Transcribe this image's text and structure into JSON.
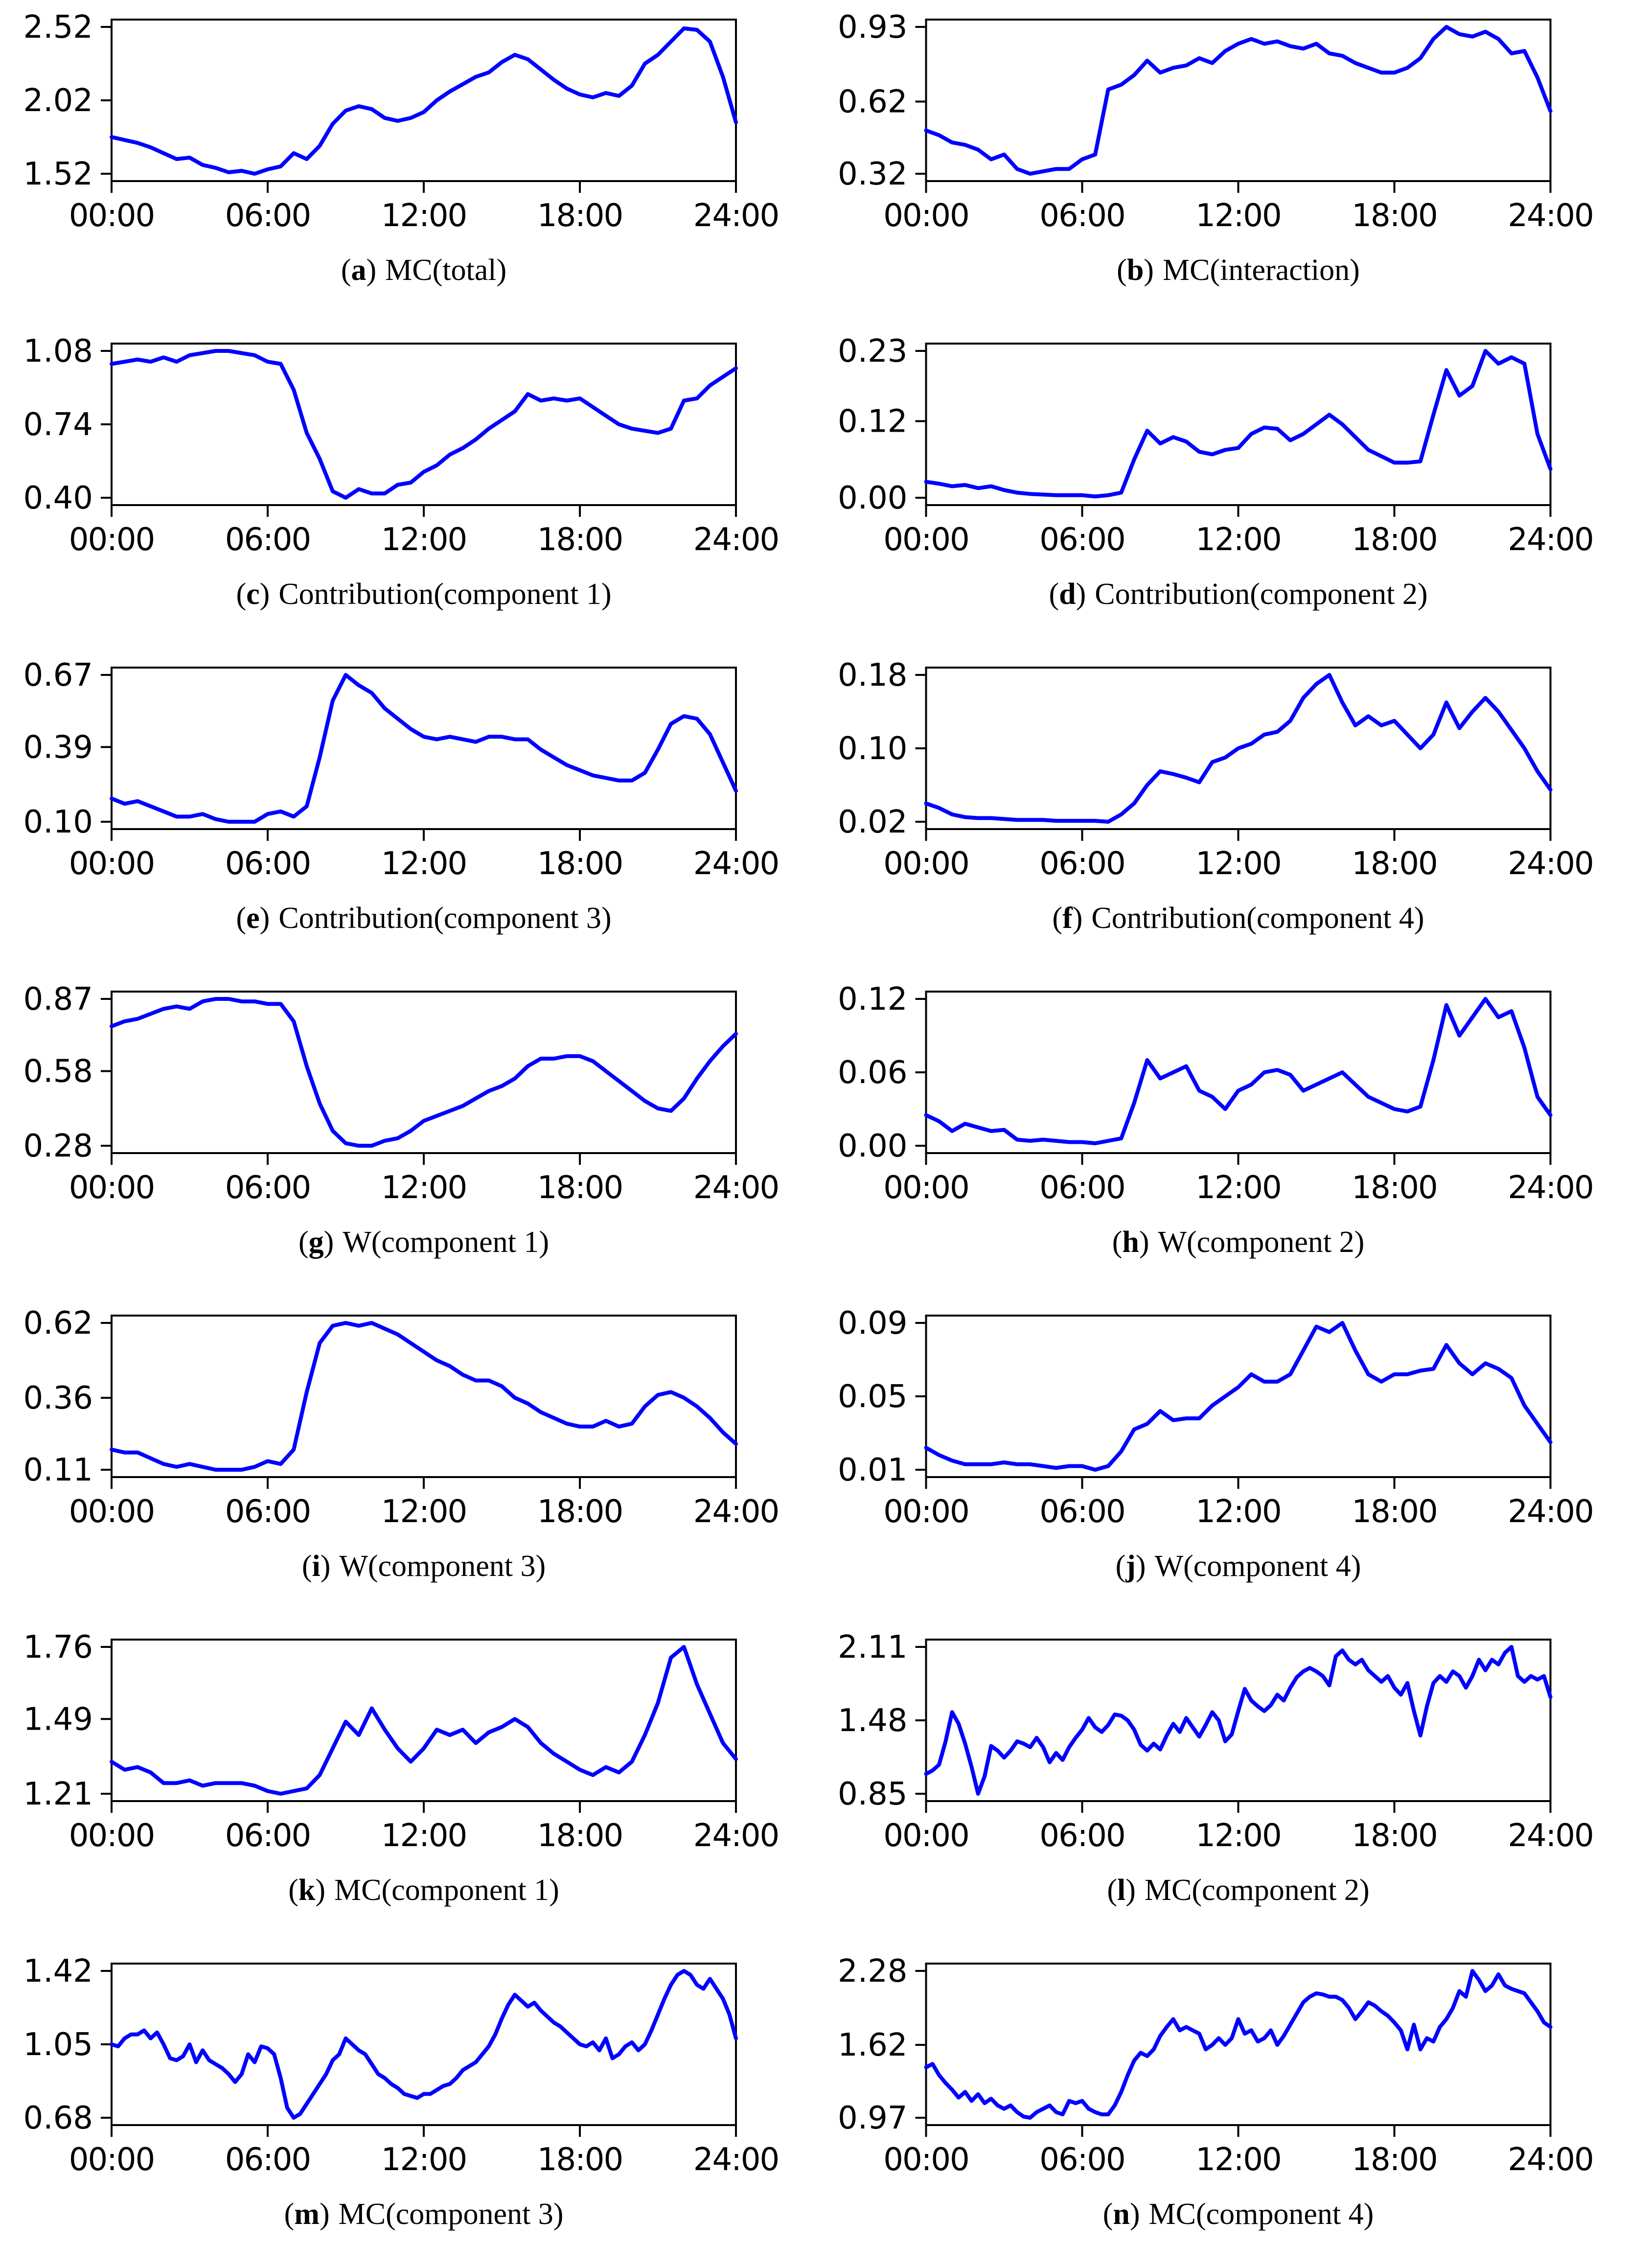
{
  "figure": {
    "line_color": "#0000ff",
    "background_color": "#ffffff",
    "axis_color": "#000000",
    "x_ticks": [
      "00:00",
      "06:00",
      "12:00",
      "18:00",
      "24:00"
    ],
    "x_tick_hours": [
      0,
      6,
      12,
      18,
      24
    ],
    "x_range_hours": [
      0,
      24
    ],
    "ylim_pad_frac": 0.05,
    "grid_on": false,
    "legend": "none",
    "layout": "7 rows x 2 columns of line subplots"
  },
  "chart_data": [
    {
      "id": "a",
      "type": "line",
      "label": "a",
      "title": "MC(total)",
      "caption": "(a) MC(total)",
      "yticks": [
        1.52,
        2.02,
        2.52
      ],
      "ytick_labels": [
        "1.52",
        "2.02",
        "2.52"
      ],
      "xlabel": "",
      "ylabel": "",
      "x_sampling": "uniform hours 0-24",
      "values": [
        1.77,
        1.75,
        1.73,
        1.7,
        1.66,
        1.62,
        1.63,
        1.58,
        1.56,
        1.53,
        1.54,
        1.52,
        1.55,
        1.57,
        1.66,
        1.62,
        1.71,
        1.86,
        1.95,
        1.98,
        1.96,
        1.9,
        1.88,
        1.9,
        1.94,
        2.02,
        2.08,
        2.13,
        2.18,
        2.21,
        2.28,
        2.33,
        2.3,
        2.23,
        2.16,
        2.1,
        2.06,
        2.04,
        2.07,
        2.05,
        2.12,
        2.27,
        2.33,
        2.42,
        2.51,
        2.5,
        2.42,
        2.18,
        1.87
      ]
    },
    {
      "id": "b",
      "type": "line",
      "label": "b",
      "title": "MC(interaction)",
      "caption": "(b) MC(interaction)",
      "yticks": [
        0.32,
        0.62,
        0.93
      ],
      "ytick_labels": [
        "0.32",
        "0.62",
        "0.93"
      ],
      "xlabel": "",
      "ylabel": "",
      "x_sampling": "uniform hours 0-24",
      "values": [
        0.5,
        0.48,
        0.45,
        0.44,
        0.42,
        0.38,
        0.4,
        0.34,
        0.32,
        0.33,
        0.34,
        0.34,
        0.38,
        0.4,
        0.67,
        0.69,
        0.73,
        0.79,
        0.74,
        0.76,
        0.77,
        0.8,
        0.78,
        0.83,
        0.86,
        0.88,
        0.86,
        0.87,
        0.85,
        0.84,
        0.86,
        0.82,
        0.81,
        0.78,
        0.76,
        0.74,
        0.74,
        0.76,
        0.8,
        0.88,
        0.93,
        0.9,
        0.89,
        0.91,
        0.88,
        0.82,
        0.83,
        0.72,
        0.58
      ]
    },
    {
      "id": "c",
      "type": "line",
      "label": "c",
      "title": "Contribution(component 1)",
      "caption": "(c) Contribution(component 1)",
      "yticks": [
        0.4,
        0.74,
        1.08
      ],
      "ytick_labels": [
        "0.40",
        "0.74",
        "1.08"
      ],
      "xlabel": "",
      "ylabel": "",
      "x_sampling": "uniform hours 0-24",
      "values": [
        1.02,
        1.03,
        1.04,
        1.03,
        1.05,
        1.03,
        1.06,
        1.07,
        1.08,
        1.08,
        1.07,
        1.06,
        1.03,
        1.02,
        0.9,
        0.7,
        0.58,
        0.43,
        0.4,
        0.44,
        0.42,
        0.42,
        0.46,
        0.47,
        0.52,
        0.55,
        0.6,
        0.63,
        0.67,
        0.72,
        0.76,
        0.8,
        0.88,
        0.85,
        0.86,
        0.85,
        0.86,
        0.82,
        0.78,
        0.74,
        0.72,
        0.71,
        0.7,
        0.72,
        0.85,
        0.86,
        0.92,
        0.96,
        1.0
      ]
    },
    {
      "id": "d",
      "type": "line",
      "label": "d",
      "title": "Contribution(component 2)",
      "caption": "(d) Contribution(component 2)",
      "yticks": [
        0.0,
        0.12,
        0.23
      ],
      "ytick_labels": [
        "0.00",
        "0.12",
        "0.23"
      ],
      "xlabel": "",
      "ylabel": "",
      "x_sampling": "uniform hours 0-24",
      "values": [
        0.025,
        0.022,
        0.018,
        0.02,
        0.015,
        0.018,
        0.012,
        0.008,
        0.006,
        0.005,
        0.004,
        0.004,
        0.004,
        0.002,
        0.004,
        0.008,
        0.06,
        0.105,
        0.085,
        0.095,
        0.088,
        0.072,
        0.068,
        0.075,
        0.078,
        0.1,
        0.11,
        0.108,
        0.09,
        0.1,
        0.115,
        0.13,
        0.115,
        0.095,
        0.075,
        0.065,
        0.055,
        0.055,
        0.057,
        0.13,
        0.2,
        0.16,
        0.175,
        0.23,
        0.21,
        0.22,
        0.21,
        0.1,
        0.045
      ]
    },
    {
      "id": "e",
      "type": "line",
      "label": "e",
      "title": "Contribution(component 3)",
      "caption": "(e) Contribution(component 3)",
      "yticks": [
        0.1,
        0.39,
        0.67
      ],
      "ytick_labels": [
        "0.10",
        "0.39",
        "0.67"
      ],
      "xlabel": "",
      "ylabel": "",
      "x_sampling": "uniform hours 0-24",
      "values": [
        0.19,
        0.17,
        0.18,
        0.16,
        0.14,
        0.12,
        0.12,
        0.13,
        0.11,
        0.1,
        0.1,
        0.1,
        0.13,
        0.14,
        0.12,
        0.16,
        0.35,
        0.57,
        0.67,
        0.63,
        0.6,
        0.54,
        0.5,
        0.46,
        0.43,
        0.42,
        0.43,
        0.42,
        0.41,
        0.43,
        0.43,
        0.42,
        0.42,
        0.38,
        0.35,
        0.32,
        0.3,
        0.28,
        0.27,
        0.26,
        0.26,
        0.29,
        0.38,
        0.48,
        0.51,
        0.5,
        0.44,
        0.33,
        0.22
      ]
    },
    {
      "id": "f",
      "type": "line",
      "label": "f",
      "title": "Contribution(component 4)",
      "caption": "(f) Contribution(component 4)",
      "yticks": [
        0.02,
        0.1,
        0.18
      ],
      "ytick_labels": [
        "0.02",
        "0.10",
        "0.18"
      ],
      "xlabel": "",
      "ylabel": "",
      "x_sampling": "uniform hours 0-24",
      "values": [
        0.04,
        0.035,
        0.028,
        0.025,
        0.024,
        0.024,
        0.023,
        0.022,
        0.022,
        0.022,
        0.021,
        0.021,
        0.021,
        0.021,
        0.02,
        0.028,
        0.04,
        0.06,
        0.075,
        0.072,
        0.068,
        0.063,
        0.085,
        0.09,
        0.1,
        0.105,
        0.115,
        0.118,
        0.13,
        0.155,
        0.17,
        0.18,
        0.15,
        0.125,
        0.135,
        0.125,
        0.13,
        0.115,
        0.1,
        0.115,
        0.15,
        0.122,
        0.14,
        0.155,
        0.14,
        0.12,
        0.1,
        0.075,
        0.055
      ]
    },
    {
      "id": "g",
      "type": "line",
      "label": "g",
      "title": "W(component 1)",
      "caption": "(g) W(component 1)",
      "yticks": [
        0.28,
        0.58,
        0.87
      ],
      "ytick_labels": [
        "0.28",
        "0.58",
        "0.87"
      ],
      "xlabel": "",
      "ylabel": "",
      "x_sampling": "uniform hours 0-24",
      "values": [
        0.76,
        0.78,
        0.79,
        0.81,
        0.83,
        0.84,
        0.83,
        0.86,
        0.87,
        0.87,
        0.86,
        0.86,
        0.85,
        0.85,
        0.78,
        0.6,
        0.45,
        0.34,
        0.29,
        0.28,
        0.28,
        0.3,
        0.31,
        0.34,
        0.38,
        0.4,
        0.42,
        0.44,
        0.47,
        0.5,
        0.52,
        0.55,
        0.6,
        0.63,
        0.63,
        0.64,
        0.64,
        0.62,
        0.58,
        0.54,
        0.5,
        0.46,
        0.43,
        0.42,
        0.47,
        0.55,
        0.62,
        0.68,
        0.73
      ]
    },
    {
      "id": "h",
      "type": "line",
      "label": "h",
      "title": "W(component 2)",
      "caption": "(h) W(component 2)",
      "yticks": [
        0.0,
        0.06,
        0.12
      ],
      "ytick_labels": [
        "0.00",
        "0.06",
        "0.12"
      ],
      "xlabel": "",
      "ylabel": "",
      "x_sampling": "uniform hours 0-24",
      "values": [
        0.025,
        0.02,
        0.012,
        0.018,
        0.015,
        0.012,
        0.013,
        0.005,
        0.004,
        0.005,
        0.004,
        0.003,
        0.003,
        0.002,
        0.004,
        0.006,
        0.035,
        0.07,
        0.055,
        0.06,
        0.065,
        0.045,
        0.04,
        0.03,
        0.045,
        0.05,
        0.06,
        0.062,
        0.058,
        0.045,
        0.05,
        0.055,
        0.06,
        0.05,
        0.04,
        0.035,
        0.03,
        0.028,
        0.032,
        0.07,
        0.115,
        0.09,
        0.105,
        0.12,
        0.105,
        0.11,
        0.08,
        0.04,
        0.025
      ]
    },
    {
      "id": "i",
      "type": "line",
      "label": "i",
      "title": "W(component 3)",
      "caption": "(i) W(component 3)",
      "yticks": [
        0.11,
        0.36,
        0.62
      ],
      "ytick_labels": [
        "0.11",
        "0.36",
        "0.62"
      ],
      "xlabel": "",
      "ylabel": "",
      "x_sampling": "uniform hours 0-24",
      "values": [
        0.18,
        0.17,
        0.17,
        0.15,
        0.13,
        0.12,
        0.13,
        0.12,
        0.11,
        0.11,
        0.11,
        0.12,
        0.14,
        0.13,
        0.18,
        0.38,
        0.55,
        0.61,
        0.62,
        0.61,
        0.62,
        0.6,
        0.58,
        0.55,
        0.52,
        0.49,
        0.47,
        0.44,
        0.42,
        0.42,
        0.4,
        0.36,
        0.34,
        0.31,
        0.29,
        0.27,
        0.26,
        0.26,
        0.28,
        0.26,
        0.27,
        0.33,
        0.37,
        0.38,
        0.36,
        0.33,
        0.29,
        0.24,
        0.2
      ]
    },
    {
      "id": "j",
      "type": "line",
      "label": "j",
      "title": "W(component 4)",
      "caption": "(j) W(component 4)",
      "yticks": [
        0.01,
        0.05,
        0.09
      ],
      "ytick_labels": [
        "0.01",
        "0.05",
        "0.09"
      ],
      "xlabel": "",
      "ylabel": "",
      "x_sampling": "uniform hours 0-24",
      "values": [
        0.022,
        0.018,
        0.015,
        0.013,
        0.013,
        0.013,
        0.014,
        0.013,
        0.013,
        0.012,
        0.011,
        0.012,
        0.012,
        0.01,
        0.012,
        0.02,
        0.032,
        0.035,
        0.042,
        0.037,
        0.038,
        0.038,
        0.045,
        0.05,
        0.055,
        0.062,
        0.058,
        0.058,
        0.062,
        0.075,
        0.088,
        0.085,
        0.09,
        0.075,
        0.062,
        0.058,
        0.062,
        0.062,
        0.064,
        0.065,
        0.078,
        0.068,
        0.062,
        0.068,
        0.065,
        0.06,
        0.045,
        0.035,
        0.025
      ]
    },
    {
      "id": "k",
      "type": "line",
      "label": "k",
      "title": "MC(component 1)",
      "caption": "(k) MC(component 1)",
      "yticks": [
        1.21,
        1.49,
        1.76
      ],
      "ytick_labels": [
        "1.21",
        "1.49",
        "1.76"
      ],
      "xlabel": "",
      "ylabel": "",
      "x_sampling": "uniform hours 0-24",
      "values": [
        1.33,
        1.3,
        1.31,
        1.29,
        1.25,
        1.25,
        1.26,
        1.24,
        1.25,
        1.25,
        1.25,
        1.24,
        1.22,
        1.21,
        1.22,
        1.23,
        1.28,
        1.38,
        1.48,
        1.43,
        1.53,
        1.45,
        1.38,
        1.33,
        1.38,
        1.45,
        1.43,
        1.45,
        1.4,
        1.44,
        1.46,
        1.49,
        1.46,
        1.4,
        1.36,
        1.33,
        1.3,
        1.28,
        1.31,
        1.29,
        1.33,
        1.43,
        1.55,
        1.72,
        1.76,
        1.62,
        1.51,
        1.4,
        1.34
      ]
    },
    {
      "id": "l",
      "type": "line",
      "label": "l",
      "title": "MC(component 2)",
      "caption": "(l) MC(component 2)",
      "yticks": [
        0.85,
        1.48,
        2.11
      ],
      "ytick_labels": [
        "0.85",
        "1.48",
        "2.11"
      ],
      "xlabel": "",
      "ylabel": "",
      "x_sampling": "uniform hours 0-24",
      "values": [
        1.02,
        1.05,
        1.1,
        1.3,
        1.55,
        1.45,
        1.28,
        1.08,
        0.85,
        1.0,
        1.26,
        1.22,
        1.16,
        1.22,
        1.3,
        1.28,
        1.25,
        1.33,
        1.25,
        1.12,
        1.2,
        1.14,
        1.25,
        1.33,
        1.4,
        1.5,
        1.42,
        1.38,
        1.44,
        1.53,
        1.52,
        1.48,
        1.4,
        1.27,
        1.22,
        1.28,
        1.23,
        1.35,
        1.45,
        1.38,
        1.5,
        1.42,
        1.34,
        1.44,
        1.55,
        1.48,
        1.3,
        1.36,
        1.56,
        1.75,
        1.65,
        1.6,
        1.56,
        1.61,
        1.7,
        1.65,
        1.76,
        1.85,
        1.9,
        1.93,
        1.9,
        1.86,
        1.78,
        2.03,
        2.08,
        2.0,
        1.96,
        2.0,
        1.91,
        1.86,
        1.81,
        1.86,
        1.76,
        1.7,
        1.8,
        1.56,
        1.35,
        1.6,
        1.8,
        1.86,
        1.81,
        1.9,
        1.86,
        1.76,
        1.86,
        2.0,
        1.91,
        2.0,
        1.96,
        2.06,
        2.11,
        1.86,
        1.81,
        1.86,
        1.83,
        1.86,
        1.68
      ]
    },
    {
      "id": "m",
      "type": "line",
      "label": "m",
      "title": "MC(component 3)",
      "caption": "(m) MC(component 3)",
      "yticks": [
        0.68,
        1.05,
        1.42
      ],
      "ytick_labels": [
        "0.68",
        "1.05",
        "1.42"
      ],
      "xlabel": "",
      "ylabel": "",
      "x_sampling": "uniform hours 0-24",
      "values": [
        1.05,
        1.04,
        1.08,
        1.1,
        1.1,
        1.12,
        1.08,
        1.11,
        1.05,
        0.98,
        0.97,
        0.99,
        1.05,
        0.96,
        1.02,
        0.97,
        0.95,
        0.93,
        0.9,
        0.86,
        0.9,
        1.0,
        0.96,
        1.04,
        1.03,
        1.0,
        0.88,
        0.73,
        0.68,
        0.7,
        0.75,
        0.8,
        0.85,
        0.9,
        0.97,
        1.0,
        1.08,
        1.05,
        1.02,
        1.0,
        0.95,
        0.9,
        0.88,
        0.85,
        0.83,
        0.8,
        0.79,
        0.78,
        0.8,
        0.8,
        0.82,
        0.84,
        0.85,
        0.88,
        0.92,
        0.94,
        0.96,
        1.0,
        1.04,
        1.1,
        1.18,
        1.25,
        1.3,
        1.27,
        1.24,
        1.26,
        1.22,
        1.19,
        1.16,
        1.14,
        1.11,
        1.08,
        1.05,
        1.04,
        1.06,
        1.02,
        1.08,
        0.98,
        1.0,
        1.04,
        1.06,
        1.02,
        1.05,
        1.12,
        1.2,
        1.28,
        1.35,
        1.4,
        1.42,
        1.4,
        1.35,
        1.33,
        1.38,
        1.33,
        1.28,
        1.2,
        1.08
      ]
    },
    {
      "id": "n",
      "type": "line",
      "label": "n",
      "title": "MC(component 4)",
      "caption": "(n) MC(component 4)",
      "yticks": [
        0.97,
        1.62,
        2.28
      ],
      "ytick_labels": [
        "0.97",
        "1.62",
        "2.28"
      ],
      "xlabel": "",
      "ylabel": "",
      "x_sampling": "uniform hours 0-24",
      "values": [
        1.42,
        1.45,
        1.35,
        1.28,
        1.22,
        1.15,
        1.2,
        1.12,
        1.18,
        1.1,
        1.14,
        1.08,
        1.05,
        1.08,
        1.02,
        0.98,
        0.97,
        1.02,
        1.05,
        1.08,
        1.02,
        1.0,
        1.12,
        1.1,
        1.12,
        1.05,
        1.02,
        1.0,
        1.0,
        1.08,
        1.2,
        1.35,
        1.48,
        1.55,
        1.52,
        1.58,
        1.7,
        1.78,
        1.85,
        1.75,
        1.78,
        1.75,
        1.72,
        1.58,
        1.62,
        1.68,
        1.62,
        1.68,
        1.85,
        1.72,
        1.75,
        1.65,
        1.68,
        1.75,
        1.62,
        1.7,
        1.8,
        1.9,
        2.0,
        2.05,
        2.08,
        2.07,
        2.05,
        2.05,
        2.02,
        1.95,
        1.85,
        1.92,
        2.0,
        1.97,
        1.92,
        1.88,
        1.82,
        1.75,
        1.58,
        1.8,
        1.58,
        1.68,
        1.65,
        1.78,
        1.85,
        1.95,
        2.1,
        2.05,
        2.28,
        2.2,
        2.1,
        2.15,
        2.25,
        2.15,
        2.12,
        2.1,
        2.08,
        2.0,
        1.92,
        1.82,
        1.78
      ]
    }
  ]
}
